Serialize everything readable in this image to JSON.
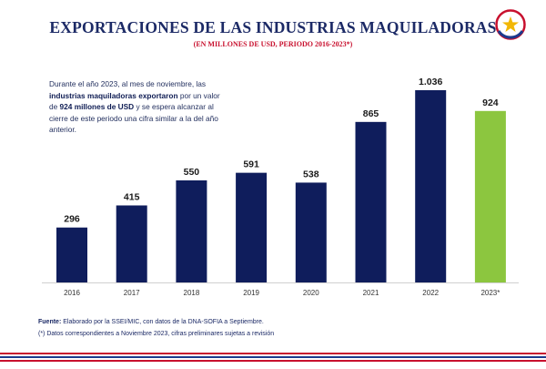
{
  "title": "EXPORTACIONES DE LAS INDUSTRIAS MAQUILADORAS",
  "subtitle": "(EN MILLONES DE USD, PERIODO 2016-2023*)",
  "note": {
    "part1": "Durante el año 2023, al mes de noviembre, las ",
    "bold1": "industrias maquiladoras exportaron",
    "part2": " por un valor de ",
    "bold2": "924 millones de USD",
    "part3": " y se espera alcanzar al cierre de este periodo una cifra similar a la del año anterior."
  },
  "chart_data": {
    "type": "bar",
    "categories": [
      "2016",
      "2017",
      "2018",
      "2019",
      "2020",
      "2021",
      "2022",
      "2023*"
    ],
    "values": [
      296,
      415,
      550,
      591,
      538,
      865,
      1036,
      924
    ],
    "value_labels": [
      "296",
      "415",
      "550",
      "591",
      "538",
      "865",
      "1.036",
      "924"
    ],
    "colors": [
      "#0f1d5c",
      "#0f1d5c",
      "#0f1d5c",
      "#0f1d5c",
      "#0f1d5c",
      "#0f1d5c",
      "#0f1d5c",
      "#8cc63f"
    ],
    "title": "EXPORTACIONES DE LAS INDUSTRIAS MAQUILADORAS",
    "xlabel": "",
    "ylabel": "",
    "ylim": [
      0,
      1036
    ],
    "grid": false,
    "legend": "none"
  },
  "footer": {
    "source_label": "Fuente:",
    "source_text": " Elaborado por la SSEI/MIC, con datos de la DNA-SOFIA a Septiembre.",
    "note": "(*) Datos correspondientes a Noviembre 2023, cifras preliminares sujetas a revisión"
  },
  "colors": {
    "title": "#1c2a66",
    "subtitle": "#c8102e",
    "bar": "#0f1d5c",
    "bar_highlight": "#8cc63f",
    "stripe_red": "#c8102e",
    "stripe_blue": "#1c3a8c"
  },
  "icons": {
    "logo": "paraguay-star-seal-icon"
  }
}
